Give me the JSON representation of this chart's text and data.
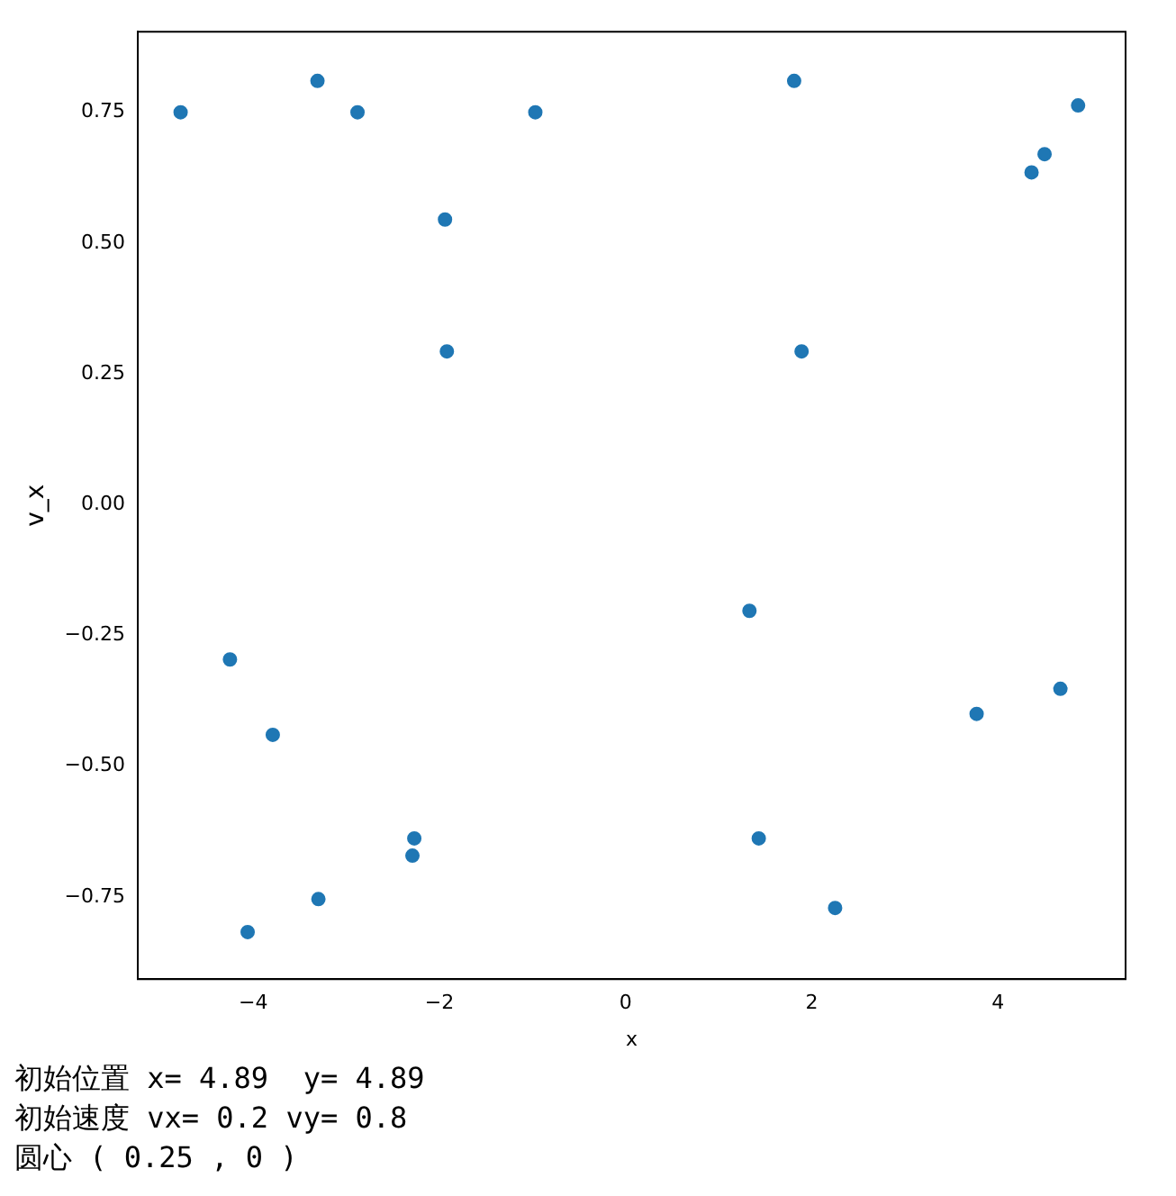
{
  "chart_data": {
    "type": "scatter",
    "xlabel": "x",
    "ylabel": "v_x",
    "x": [
      -4.78,
      -3.31,
      -2.88,
      -0.97,
      -1.94,
      -1.92,
      1.81,
      1.89,
      4.86,
      4.5,
      4.36,
      1.33,
      -4.25,
      -3.79,
      4.67,
      3.77,
      -2.27,
      -2.29,
      1.43,
      -3.3,
      -4.06,
      2.25
    ],
    "values": [
      0.75,
      0.81,
      0.75,
      0.75,
      0.545,
      0.293,
      0.81,
      0.293,
      0.763,
      0.67,
      0.635,
      -0.203,
      -0.296,
      -0.44,
      -0.352,
      -0.4,
      -0.638,
      -0.671,
      -0.638,
      -0.754,
      -0.817,
      -0.771
    ],
    "color": "#1f77b4",
    "marker": "circle",
    "grid": false,
    "legend": false,
    "xlim": [
      -5.24,
      5.37
    ],
    "ylim": [
      -0.907,
      0.904
    ],
    "xticks": [
      {
        "value": -4,
        "label": "−4"
      },
      {
        "value": -2,
        "label": "−2"
      },
      0,
      2,
      4
    ],
    "yticks": [
      {
        "value": -0.75,
        "label": "−0.75"
      },
      {
        "value": -0.5,
        "label": "−0.50"
      },
      {
        "value": -0.25,
        "label": "−0.25"
      },
      {
        "value": 0,
        "label": "0.00"
      },
      {
        "value": 0.25,
        "label": "0.25"
      },
      {
        "value": 0.5,
        "label": "0.50"
      },
      {
        "value": 0.75,
        "label": "0.75"
      }
    ],
    "annotations": [
      "初始位置 x= 4.89  y= 4.89",
      "初始速度 vx= 0.2 vy= 0.8",
      "圆心 ( 0.25 , 0 )"
    ]
  }
}
